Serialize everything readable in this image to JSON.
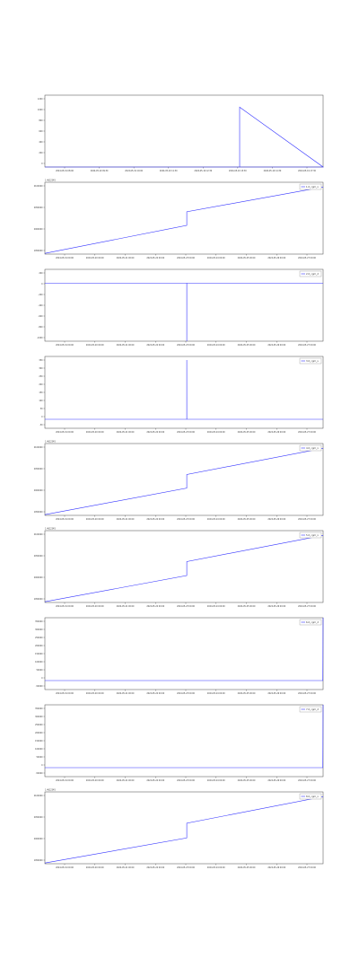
{
  "chart_data": [
    {
      "type": "line",
      "title": "",
      "xlabel": "",
      "ylabel": "",
      "x_tick_labels": [
        "2024-05-19 08:00",
        "2024-05-19 09:30",
        "2024-05-19 10:00",
        "2024-05-19 11:30",
        "2024-05-19 12:30",
        "2024-05-19 13:30",
        "2024-05-19 14:30",
        "2024-05-19 17:30"
      ],
      "y_tick_labels": [
        "1200",
        "1000",
        "800",
        "600",
        "400",
        "200",
        "0"
      ],
      "ylim": [
        0,
        1200
      ],
      "offset_text": "",
      "series": [
        {
          "name": "",
          "color": "#3333ff",
          "x": [
            0.0,
            0.45,
            1.0,
            0.7,
            0.7001,
            0.72,
            1.0
          ],
          "y": [
            0,
            0,
            0,
            1000,
            0,
            0,
            0
          ]
        }
      ],
      "legend": null
    },
    {
      "type": "line",
      "title": "",
      "xlabel": "",
      "ylabel": "",
      "x_tick_labels": [
        "2024-05-19 00:00",
        "2024-05-20 00:00",
        "2024-05-21 00:00",
        "2024-05-22 00:00",
        "2024-05-23 00:00",
        "2024-05-24 00:00",
        "2024-05-25 00:00",
        "2024-05-26 00:00",
        "2024-05-27 00:00"
      ],
      "y_tick_labels": [
        "2100000",
        "2050000",
        "2000000",
        "1950000"
      ],
      "ylim": [
        1930000,
        2125000
      ],
      "offset_text": "1.4612345",
      "series": [
        {
          "name": "1.0_cgm_x",
          "color": "#3333ff",
          "x": [
            0.0,
            0.51,
            0.51,
            1.0
          ],
          "y": [
            1932000,
            2008000,
            2045000,
            2112000
          ]
        }
      ],
      "legend": {
        "placement": "top-right",
        "entries": [
          "1.0_cgm_x"
        ]
      }
    },
    {
      "type": "line",
      "title": "",
      "xlabel": "",
      "ylabel": "",
      "x_tick_labels": [
        "2024-05-19 00:00",
        "2024-05-20 00:00",
        "2024-05-21 00:00",
        "2024-05-22 00:00",
        "2024-05-23 00:00",
        "2024-05-24 00:00",
        "2024-05-25 00:00",
        "2024-05-26 00:00",
        "2024-05-27 00:00"
      ],
      "y_tick_labels": [
        "200",
        "0",
        "-200",
        "-400",
        "-600",
        "-800",
        "-1000"
      ],
      "ylim": [
        -1050,
        250
      ],
      "offset_text": "",
      "series": [
        {
          "name": "2.0_cgm_d",
          "color": "#3333ff",
          "x": [
            0.0,
            0.51,
            0.51,
            0.5101,
            1.0
          ],
          "y": [
            0,
            0,
            -1050,
            0,
            0
          ]
        }
      ],
      "legend": {
        "placement": "top-right",
        "entries": [
          "2.0_cgm_d"
        ]
      }
    },
    {
      "type": "line",
      "title": "",
      "xlabel": "",
      "ylabel": "",
      "x_tick_labels": [
        "2024-05-19 00:00",
        "2024-05-20 00:00",
        "2024-05-21 00:00",
        "2024-05-22 00:00",
        "2024-05-23 00:00",
        "2024-05-24 00:00",
        "2024-05-25 00:00",
        "2024-05-26 00:00",
        "2024-05-27 00:00"
      ],
      "y_tick_labels": [
        "350",
        "300",
        "250",
        "200",
        "150",
        "100",
        "50",
        "0",
        "-50"
      ],
      "ylim": [
        -50,
        350
      ],
      "offset_text": "",
      "series": [
        {
          "name": "3.0_cgm_v",
          "color": "#3333ff",
          "x": [
            0.0,
            0.51,
            0.51,
            0.5101,
            1.0
          ],
          "y": [
            0,
            0,
            330,
            0,
            0
          ]
        }
      ],
      "legend": {
        "placement": "top-right",
        "entries": [
          "3.0_cgm_v"
        ]
      }
    },
    {
      "type": "line",
      "title": "",
      "xlabel": "",
      "ylabel": "",
      "x_tick_labels": [
        "2024-05-19 00:00",
        "2024-05-20 00:00",
        "2024-05-21 00:00",
        "2024-05-22 00:00",
        "2024-05-23 00:00",
        "2024-05-24 00:00",
        "2024-05-25 00:00",
        "2024-05-26 00:00",
        "2024-05-27 00:00"
      ],
      "y_tick_labels": [
        "2100000",
        "2050000",
        "2000000",
        "1950000"
      ],
      "ylim": [
        1930000,
        2125000
      ],
      "offset_text": "1.4612345",
      "series": [
        {
          "name": "4.0_cgm_x",
          "color": "#3333ff",
          "x": [
            0.0,
            0.51,
            0.51,
            1.0
          ],
          "y": [
            1932000,
            2004000,
            2041000,
            2112000
          ]
        }
      ],
      "legend": {
        "placement": "top-right",
        "entries": [
          "4.0_cgm_x"
        ]
      }
    },
    {
      "type": "line",
      "title": "",
      "xlabel": "",
      "ylabel": "",
      "x_tick_labels": [
        "2024-05-19 00:00",
        "2024-05-20 00:00",
        "2024-05-21 00:00",
        "2024-05-22 00:00",
        "2024-05-23 00:00",
        "2024-05-24 00:00",
        "2024-05-25 00:00",
        "2024-05-26 00:00",
        "2024-05-27 00:00"
      ],
      "y_tick_labels": [
        "2100000",
        "2050000",
        "2000000",
        "1950000"
      ],
      "ylim": [
        1930000,
        2125000
      ],
      "offset_text": "1.4612345",
      "series": [
        {
          "name": "5.0_cgm_x",
          "color": "#3333ff",
          "x": [
            0.0,
            0.51,
            0.51,
            1.0
          ],
          "y": [
            1932000,
            2003000,
            2041000,
            2112000
          ]
        }
      ],
      "legend": {
        "placement": "top-right",
        "entries": [
          "5.0_cgm_x"
        ]
      }
    },
    {
      "type": "line",
      "title": "",
      "xlabel": "",
      "ylabel": "",
      "x_tick_labels": [
        "2024-05-19 00:00",
        "2024-05-20 00:00",
        "2024-05-21 00:00",
        "2024-05-22 00:00",
        "2024-05-23 00:00",
        "2024-05-24 00:00",
        "2024-05-25 00:00",
        "2024-05-26 00:00",
        "2024-05-27 00:00"
      ],
      "y_tick_labels": [
        "350000",
        "300000",
        "250000",
        "200000",
        "150000",
        "100000",
        "50000",
        "0",
        "-50000"
      ],
      "ylim": [
        -50000,
        350000
      ],
      "offset_text": "",
      "series": [
        {
          "name": "6.0_cgm_d",
          "color": "#3333ff",
          "x": [
            0.0,
            0.999,
            1.0
          ],
          "y": [
            0,
            0,
            350000
          ]
        }
      ],
      "legend": {
        "placement": "top-right",
        "entries": [
          "6.0_cgm_d"
        ]
      }
    },
    {
      "type": "line",
      "title": "",
      "xlabel": "",
      "ylabel": "",
      "x_tick_labels": [
        "2024-05-19 00:00",
        "2024-05-20 00:00",
        "2024-05-21 00:00",
        "2024-05-22 00:00",
        "2024-05-23 00:00",
        "2024-05-24 00:00",
        "2024-05-25 00:00",
        "2024-05-26 00:00",
        "2024-05-27 00:00"
      ],
      "y_tick_labels": [
        "350000",
        "300000",
        "250000",
        "200000",
        "150000",
        "100000",
        "50000",
        "0",
        "-50000"
      ],
      "ylim": [
        -50000,
        350000
      ],
      "offset_text": "",
      "series": [
        {
          "name": "7.0_cgm_d",
          "color": "#3333ff",
          "x": [
            0.0,
            0.999,
            1.0
          ],
          "y": [
            0,
            0,
            350000
          ]
        }
      ],
      "legend": {
        "placement": "top-right",
        "entries": [
          "7.0_cgm_d"
        ]
      }
    },
    {
      "type": "line",
      "title": "",
      "xlabel": "",
      "ylabel": "",
      "x_tick_labels": [
        "2024-05-19 00:00",
        "2024-05-20 00:00",
        "2024-05-21 00:00",
        "2024-05-22 00:00",
        "2024-05-23 00:00",
        "2024-05-24 00:00",
        "2024-05-25 00:00",
        "2024-05-26 00:00",
        "2024-05-27 00:00"
      ],
      "y_tick_labels": [
        "2100000",
        "2050000",
        "2000000",
        "1950000"
      ],
      "ylim": [
        1930000,
        2125000
      ],
      "offset_text": "1.4612345",
      "series": [
        {
          "name": "8.0_cgm_x",
          "color": "#3333ff",
          "x": [
            0.0,
            0.51,
            0.51,
            1.0
          ],
          "y": [
            1932000,
            2000000,
            2040000,
            2112000
          ]
        }
      ],
      "legend": {
        "placement": "top-right",
        "entries": [
          "8.0_cgm_x"
        ]
      }
    }
  ]
}
